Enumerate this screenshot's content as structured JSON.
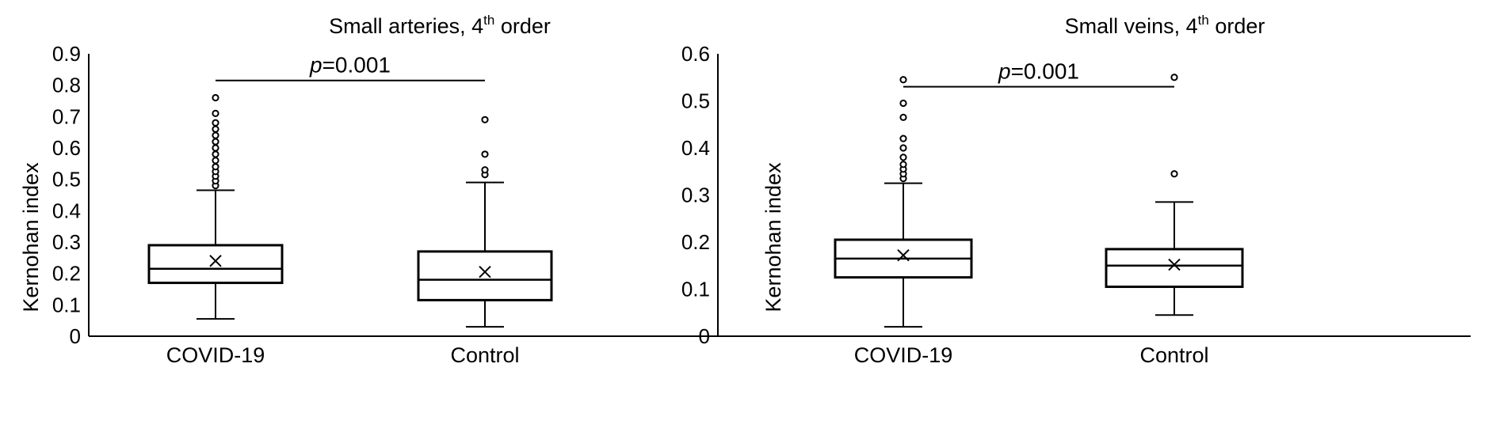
{
  "chart_data": [
    {
      "type": "box",
      "title": "Small arteries, 4",
      "title_sup": "th",
      "title_suffix": " order",
      "xlabel": "",
      "ylabel": "Kernohan index",
      "ylim": [
        0,
        0.9
      ],
      "ytick_step": 0.1,
      "yticks": [
        "0",
        "0.1",
        "0.2",
        "0.3",
        "0.4",
        "0.5",
        "0.6",
        "0.7",
        "0.8",
        "0.9"
      ],
      "categories": [
        "COVID-19",
        "Control"
      ],
      "boxes": [
        {
          "category": "COVID-19",
          "whisker_low": 0.055,
          "q1": 0.17,
          "median": 0.215,
          "q3": 0.29,
          "whisker_high": 0.465,
          "mean": 0.24,
          "outliers": [
            0.48,
            0.495,
            0.51,
            0.525,
            0.54,
            0.56,
            0.58,
            0.6,
            0.62,
            0.64,
            0.66,
            0.68,
            0.71,
            0.76
          ]
        },
        {
          "category": "Control",
          "whisker_low": 0.03,
          "q1": 0.115,
          "median": 0.18,
          "q3": 0.27,
          "whisker_high": 0.49,
          "mean": 0.205,
          "outliers": [
            0.515,
            0.53,
            0.58,
            0.69
          ]
        }
      ],
      "annotation": {
        "p_label": "p",
        "p_value": "=0.001",
        "y": 0.815
      }
    },
    {
      "type": "box",
      "title": "Small veins, 4",
      "title_sup": "th",
      "title_suffix": " order",
      "xlabel": "",
      "ylabel": "Kernohan index",
      "ylim": [
        0,
        0.6
      ],
      "ytick_step": 0.1,
      "yticks": [
        "0",
        "0.1",
        "0.2",
        "0.3",
        "0.4",
        "0.5",
        "0.6"
      ],
      "categories": [
        "COVID-19",
        "Control"
      ],
      "boxes": [
        {
          "category": "COVID-19",
          "whisker_low": 0.02,
          "q1": 0.125,
          "median": 0.165,
          "q3": 0.205,
          "whisker_high": 0.325,
          "mean": 0.172,
          "outliers": [
            0.335,
            0.345,
            0.355,
            0.365,
            0.38,
            0.4,
            0.42,
            0.465,
            0.495,
            0.545
          ]
        },
        {
          "category": "Control",
          "whisker_low": 0.045,
          "q1": 0.105,
          "median": 0.15,
          "q3": 0.185,
          "whisker_high": 0.285,
          "mean": 0.152,
          "outliers": [
            0.345,
            0.55
          ]
        }
      ],
      "annotation": {
        "p_label": "p",
        "p_value": "=0.001",
        "y": 0.53
      }
    }
  ]
}
